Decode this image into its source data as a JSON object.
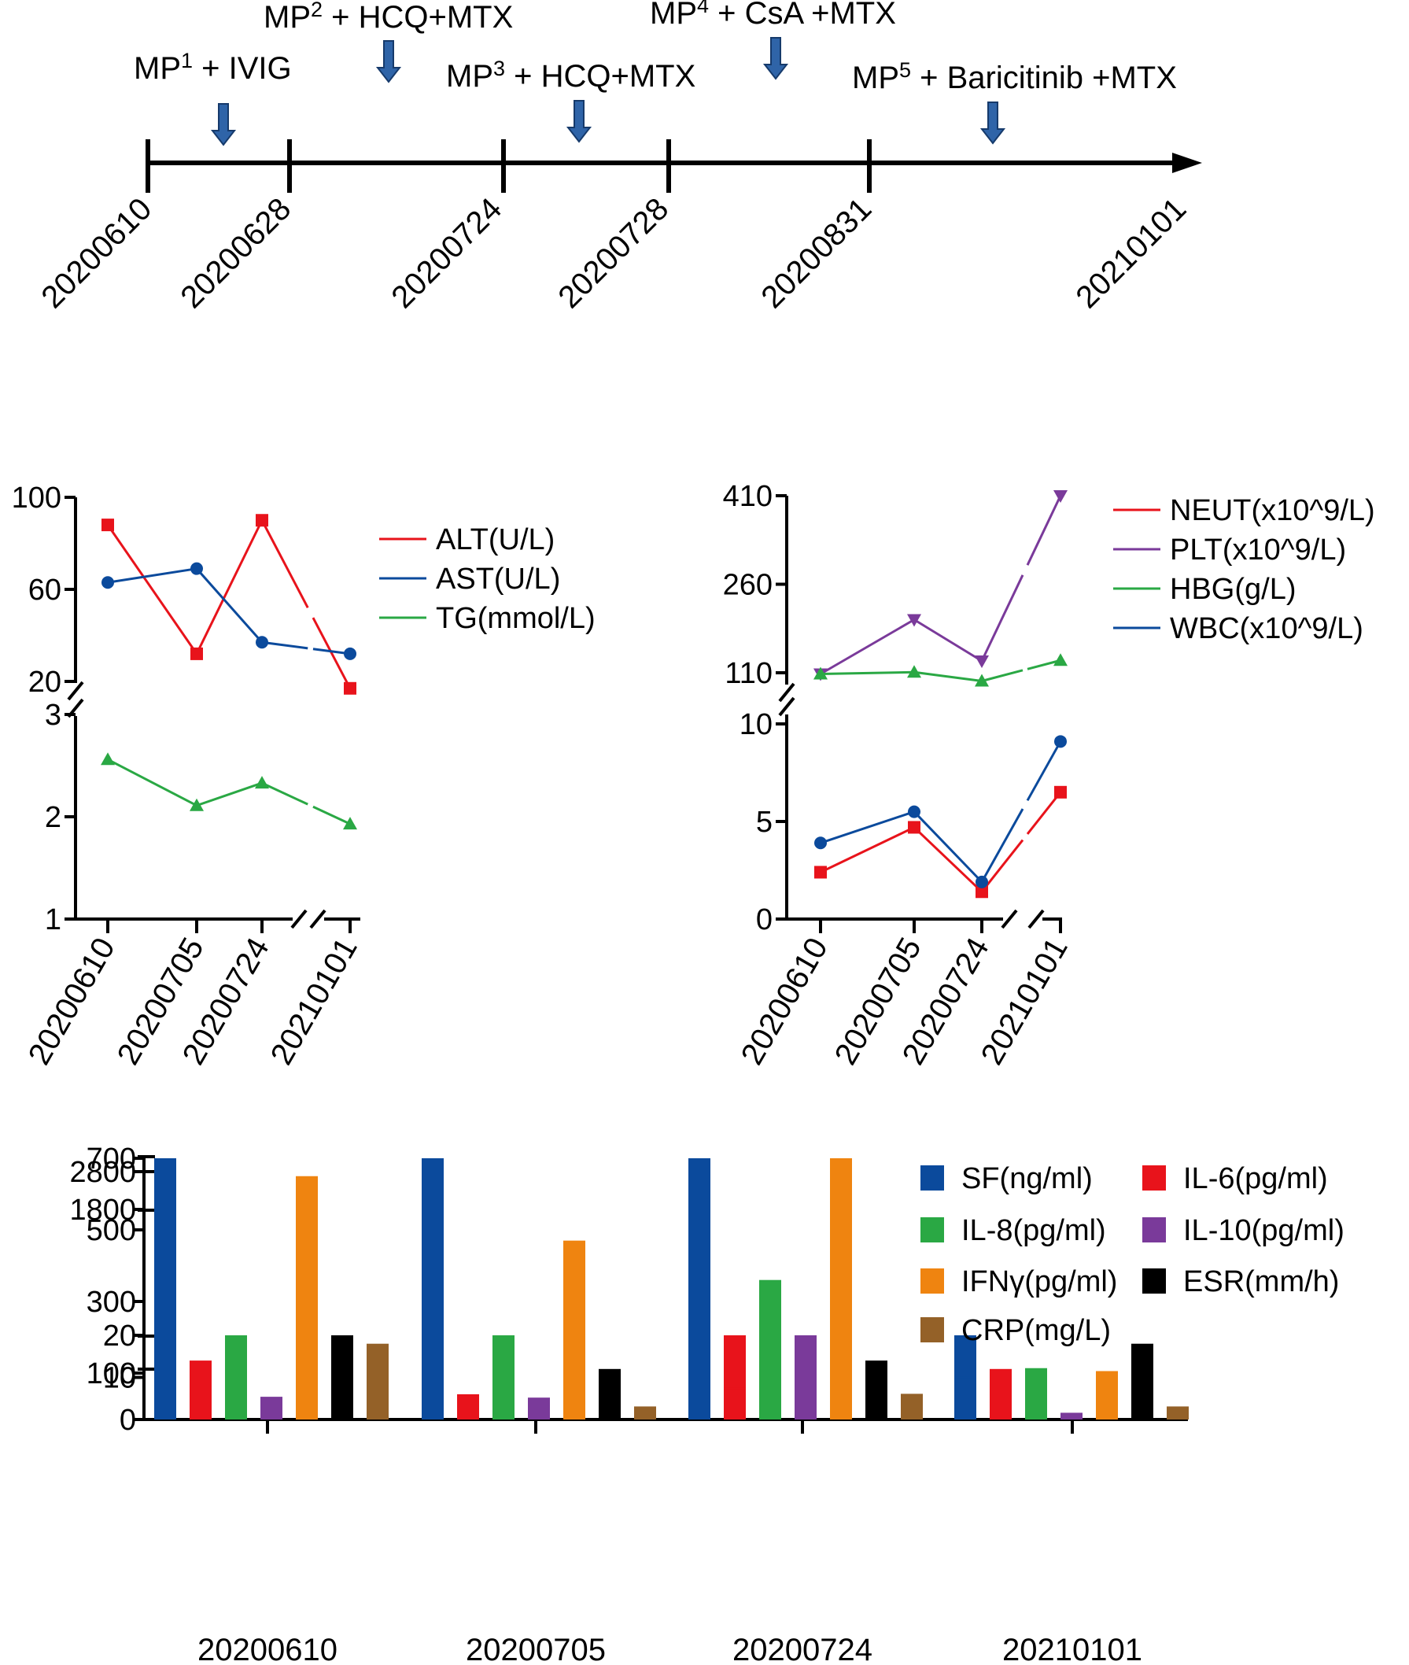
{
  "colors": {
    "axis": "#000000",
    "arrow_fill": "#2f64a8",
    "arrow_stroke": "#163a6b",
    "red": "#e8131b",
    "blue": "#0b4a9c",
    "green": "#2aa844",
    "purple": "#7a3a9a",
    "orange": "#ef8410",
    "black": "#000000",
    "brown": "#946128"
  },
  "chart_data": [
    {
      "type": "timeline",
      "dates": [
        "20200610",
        "20200628",
        "20200724",
        "20200728",
        "20200831",
        "20210101"
      ],
      "treatments": [
        {
          "mp": "MP",
          "sup": "1",
          "rest": " + IVIG"
        },
        {
          "mp": "MP",
          "sup": "2",
          "rest": " + HCQ+MTX"
        },
        {
          "mp": "MP",
          "sup": "3",
          "rest": " + HCQ+MTX"
        },
        {
          "mp": "MP",
          "sup": "4",
          "rest": " + CsA +MTX"
        },
        {
          "mp": "MP",
          "sup": "5",
          "rest": " + Baricitinib +MTX"
        }
      ]
    },
    {
      "type": "line",
      "x_labels": [
        "20200610",
        "20200705",
        "20200724",
        "20210101"
      ],
      "axis_break": true,
      "upper_ticks": [
        "100",
        "60",
        "20"
      ],
      "upper_ylim": [
        20,
        100
      ],
      "lower_ticks": [
        "3",
        "2",
        "1"
      ],
      "lower_ylim": [
        1,
        3
      ],
      "series": [
        {
          "name": "ALT(U/L)",
          "color": "red",
          "marker": "square",
          "panel": "upper",
          "values": [
            88,
            32,
            90,
            17
          ]
        },
        {
          "name": "AST(U/L)",
          "color": "blue",
          "marker": "circle",
          "panel": "upper",
          "values": [
            63,
            69,
            37,
            32
          ]
        },
        {
          "name": "TG(mmol/L)",
          "color": "green",
          "marker": "triangle",
          "panel": "lower",
          "values": [
            2.56,
            2.11,
            2.33,
            1.93
          ]
        }
      ]
    },
    {
      "type": "line",
      "x_labels": [
        "20200610",
        "20200705",
        "20200724",
        "20210101"
      ],
      "axis_break": true,
      "upper_ticks": [
        "410",
        "260",
        "110"
      ],
      "upper_ylim": [
        110,
        410
      ],
      "lower_ticks": [
        "10",
        "5",
        "0"
      ],
      "lower_ylim": [
        0,
        10
      ],
      "series": [
        {
          "name": "NEUT(x10^9/L)",
          "color": "red",
          "marker": "square",
          "panel": "lower",
          "values": [
            2.4,
            4.7,
            1.4,
            6.5
          ]
        },
        {
          "name": "PLT(x10^9/L)",
          "color": "purple",
          "marker": "triangle-down",
          "panel": "upper",
          "values": [
            108,
            200,
            130,
            410
          ]
        },
        {
          "name": "HBG(g/L)",
          "color": "green",
          "marker": "triangle",
          "panel": "upper",
          "values": [
            108,
            111,
            96,
            131
          ]
        },
        {
          "name": "WBC(x10^9/L)",
          "color": "blue",
          "marker": "circle",
          "panel": "lower",
          "values": [
            3.9,
            5.5,
            1.9,
            9.1
          ]
        }
      ]
    },
    {
      "type": "bar",
      "categories": [
        "20200610",
        "20200705",
        "20200724",
        "20210101"
      ],
      "axis_break": true,
      "top_ticks": [
        "2800",
        "1800"
      ],
      "mid_ticks": [
        "700",
        "500",
        "300",
        "100"
      ],
      "low_ticks": [
        "20",
        "10",
        "0"
      ],
      "series": [
        {
          "name": "SF(ng/ml)",
          "color": "blue",
          "values": [
            1800,
            1800,
            1800,
            90
          ]
        },
        {
          "name": "IL-6(pg/ml)",
          "color": "red",
          "values": [
            14,
            6,
            60,
            12
          ]
        },
        {
          "name": "IL-8(pg/ml)",
          "color": "green",
          "values": [
            55,
            45,
            360,
            12.2
          ]
        },
        {
          "name": "IL-10(pg/ml)",
          "color": "purple",
          "values": [
            5.4,
            5.2,
            115,
            1.6
          ]
        },
        {
          "name": "IFNγ(pg/ml)",
          "color": "orange",
          "values": [
            650,
            470,
            2450,
            11.5
          ]
        },
        {
          "name": "ESR(mm/h)",
          "color": "black",
          "values": [
            20,
            12,
            14,
            18
          ]
        },
        {
          "name": "CRP(mg/L)",
          "color": "brown",
          "values": [
            18,
            3.1,
            6.1,
            3.1
          ]
        }
      ]
    }
  ]
}
